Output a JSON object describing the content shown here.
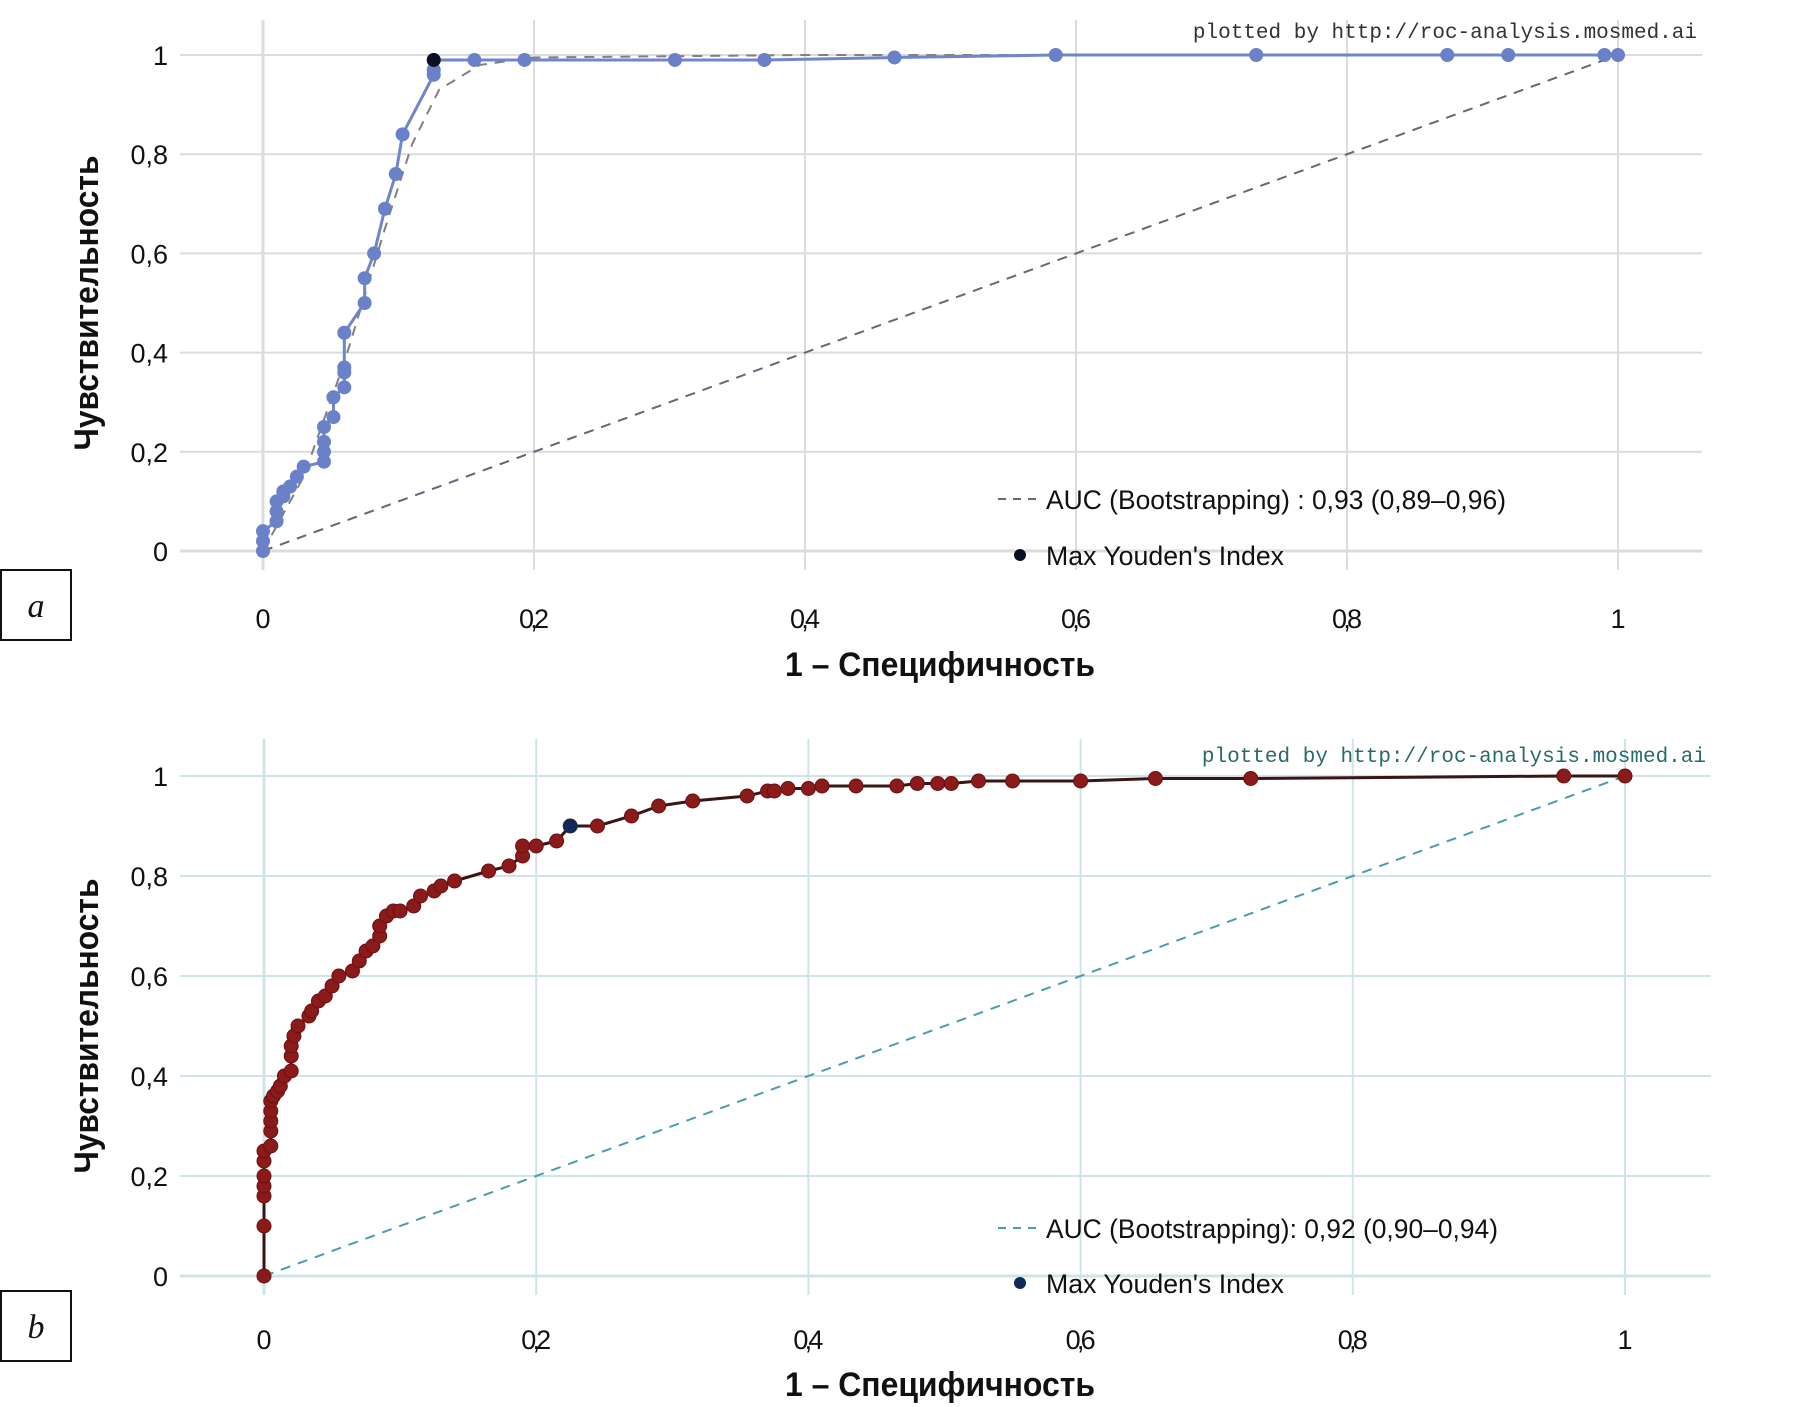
{
  "chart_data": [
    {
      "id": "a",
      "type": "line",
      "panel_label": "a",
      "credit": "plotted by http://roc-analysis.mosmed.ai",
      "xlabel": "1 – Специфичность",
      "ylabel": "Чувствительность",
      "xlim": [
        0,
        1
      ],
      "ylim": [
        0,
        1
      ],
      "xticks": [
        "0",
        "0,2",
        "0,4",
        "0,6",
        "0,8",
        "1"
      ],
      "yticks": [
        "0",
        "0,2",
        "0,4",
        "0,6",
        "0,8",
        "1"
      ],
      "grid": true,
      "legend_position": "bottom-right",
      "legend": {
        "auc": "AUC (Bootstrapping) : 0,93 (0,89–0,96)",
        "youden": "Max Youden's Index"
      },
      "colors": {
        "line": "#6f86c9",
        "point": "#6a80c8",
        "youden": "#0a0f24",
        "grid": "#dcdcdc",
        "diagonal": "#5d6b7a",
        "smooth": "#808080",
        "credit": "#333333"
      },
      "points": [
        [
          0,
          0
        ],
        [
          0,
          0.02
        ],
        [
          0,
          0.04
        ],
        [
          0.01,
          0.06
        ],
        [
          0.01,
          0.08
        ],
        [
          0.01,
          0.1
        ],
        [
          0.015,
          0.11
        ],
        [
          0.015,
          0.12
        ],
        [
          0.02,
          0.13
        ],
        [
          0.025,
          0.15
        ],
        [
          0.03,
          0.17
        ],
        [
          0.045,
          0.18
        ],
        [
          0.045,
          0.2
        ],
        [
          0.045,
          0.22
        ],
        [
          0.045,
          0.25
        ],
        [
          0.052,
          0.27
        ],
        [
          0.052,
          0.31
        ],
        [
          0.06,
          0.33
        ],
        [
          0.06,
          0.36
        ],
        [
          0.06,
          0.37
        ],
        [
          0.06,
          0.44
        ],
        [
          0.075,
          0.5
        ],
        [
          0.075,
          0.55
        ],
        [
          0.082,
          0.6
        ],
        [
          0.09,
          0.69
        ],
        [
          0.098,
          0.76
        ],
        [
          0.103,
          0.84
        ],
        [
          0.126,
          0.96
        ],
        [
          0.126,
          0.97
        ],
        [
          0.126,
          0.99
        ],
        [
          0.156,
          0.99
        ],
        [
          0.193,
          0.99
        ],
        [
          0.304,
          0.99
        ],
        [
          0.37,
          0.99
        ],
        [
          0.466,
          0.995
        ],
        [
          0.585,
          1
        ],
        [
          0.733,
          1
        ],
        [
          0.874,
          1
        ],
        [
          0.919,
          1
        ],
        [
          0.99,
          1
        ],
        [
          1,
          1
        ]
      ],
      "youden_point": [
        0.126,
        0.99
      ],
      "smoothed": [
        [
          0,
          0
        ],
        [
          0.03,
          0.15
        ],
        [
          0.06,
          0.38
        ],
        [
          0.09,
          0.65
        ],
        [
          0.11,
          0.82
        ],
        [
          0.13,
          0.93
        ],
        [
          0.16,
          0.98
        ],
        [
          0.2,
          0.995
        ],
        [
          0.4,
          1
        ],
        [
          1,
          1
        ]
      ]
    },
    {
      "id": "b",
      "type": "line",
      "panel_label": "b",
      "credit": "plotted by http://roc-analysis.mosmed.ai",
      "xlabel": "1 – Специфичность",
      "ylabel": "Чувствительность",
      "xlim": [
        0,
        1
      ],
      "ylim": [
        0,
        1
      ],
      "xticks": [
        "0",
        "0,2",
        "0,4",
        "0,6",
        "0,8",
        "1"
      ],
      "yticks": [
        "0",
        "0,2",
        "0,4",
        "0,6",
        "0,8",
        "1"
      ],
      "grid": true,
      "legend_position": "bottom-right",
      "legend": {
        "auc": "AUC (Bootstrapping): 0,92 (0,90–0,94)",
        "youden": "Max Youden's Index"
      },
      "colors": {
        "line": "#3a1515",
        "point": "#8b1a1a",
        "youden": "#0d2a5a",
        "grid": "#cfe5e5",
        "diagonal": "#4a9db0",
        "smooth": "#9ab0b0",
        "credit": "#2a6a6a"
      },
      "points": [
        [
          0,
          0
        ],
        [
          0,
          0.1
        ],
        [
          0,
          0.16
        ],
        [
          0,
          0.18
        ],
        [
          0,
          0.2
        ],
        [
          0,
          0.23
        ],
        [
          0,
          0.25
        ],
        [
          0.005,
          0.26
        ],
        [
          0.005,
          0.29
        ],
        [
          0.005,
          0.31
        ],
        [
          0.005,
          0.33
        ],
        [
          0.005,
          0.35
        ],
        [
          0.007,
          0.36
        ],
        [
          0.01,
          0.37
        ],
        [
          0.012,
          0.38
        ],
        [
          0.015,
          0.4
        ],
        [
          0.02,
          0.41
        ],
        [
          0.02,
          0.44
        ],
        [
          0.02,
          0.46
        ],
        [
          0.022,
          0.48
        ],
        [
          0.025,
          0.5
        ],
        [
          0.033,
          0.52
        ],
        [
          0.035,
          0.53
        ],
        [
          0.04,
          0.55
        ],
        [
          0.045,
          0.56
        ],
        [
          0.05,
          0.58
        ],
        [
          0.055,
          0.6
        ],
        [
          0.065,
          0.61
        ],
        [
          0.07,
          0.63
        ],
        [
          0.075,
          0.65
        ],
        [
          0.08,
          0.66
        ],
        [
          0.085,
          0.68
        ],
        [
          0.085,
          0.7
        ],
        [
          0.09,
          0.72
        ],
        [
          0.095,
          0.73
        ],
        [
          0.1,
          0.73
        ],
        [
          0.11,
          0.74
        ],
        [
          0.115,
          0.76
        ],
        [
          0.125,
          0.77
        ],
        [
          0.13,
          0.78
        ],
        [
          0.14,
          0.79
        ],
        [
          0.165,
          0.81
        ],
        [
          0.18,
          0.82
        ],
        [
          0.19,
          0.84
        ],
        [
          0.19,
          0.86
        ],
        [
          0.2,
          0.86
        ],
        [
          0.215,
          0.87
        ],
        [
          0.225,
          0.9
        ],
        [
          0.245,
          0.9
        ],
        [
          0.27,
          0.92
        ],
        [
          0.29,
          0.94
        ],
        [
          0.315,
          0.95
        ],
        [
          0.355,
          0.96
        ],
        [
          0.37,
          0.97
        ],
        [
          0.375,
          0.97
        ],
        [
          0.385,
          0.975
        ],
        [
          0.4,
          0.975
        ],
        [
          0.41,
          0.98
        ],
        [
          0.435,
          0.98
        ],
        [
          0.465,
          0.98
        ],
        [
          0.48,
          0.985
        ],
        [
          0.495,
          0.985
        ],
        [
          0.505,
          0.985
        ],
        [
          0.525,
          0.99
        ],
        [
          0.55,
          0.99
        ],
        [
          0.6,
          0.99
        ],
        [
          0.655,
          0.995
        ],
        [
          0.725,
          0.995
        ],
        [
          0.955,
          1
        ],
        [
          1,
          1
        ]
      ],
      "youden_point": [
        0.225,
        0.9
      ],
      "smoothed": []
    }
  ]
}
